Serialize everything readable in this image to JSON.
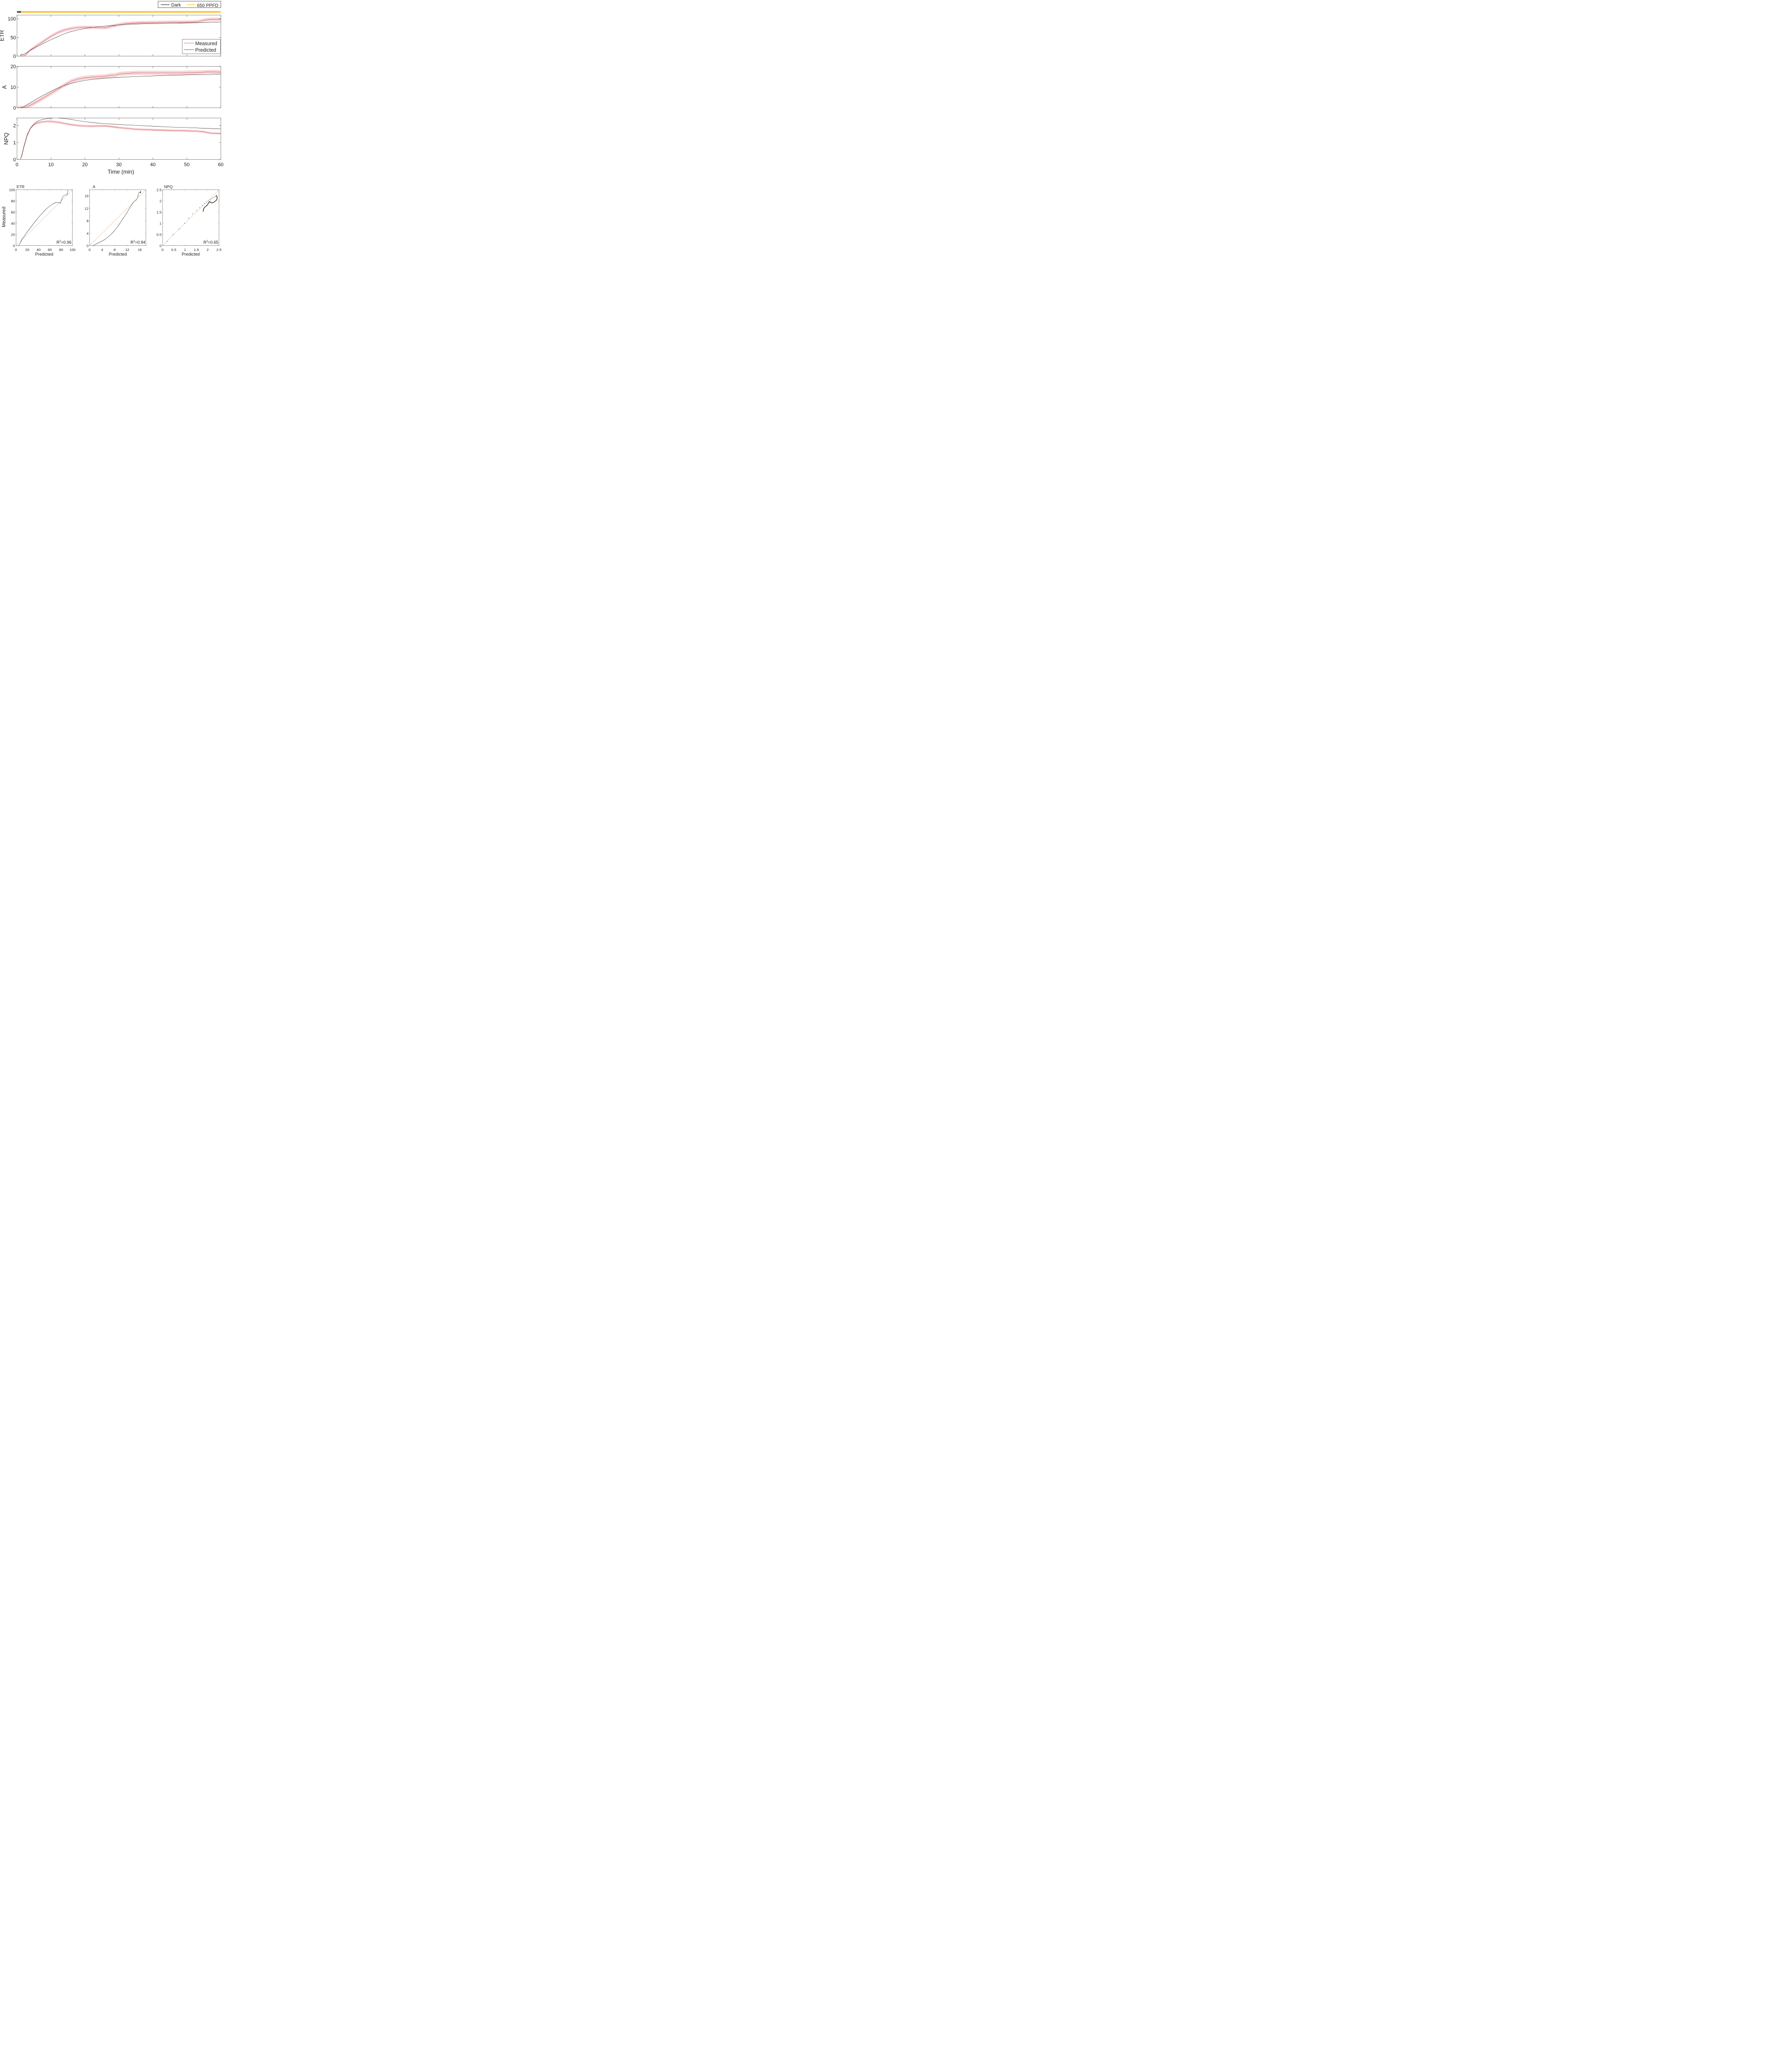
{
  "chart_data": [
    {
      "type": "line",
      "panel": "time-series",
      "light_protocol": {
        "legend": [
          {
            "label": "Dark",
            "color": "#555555"
          },
          {
            "label": "650 PPFD",
            "color": "#f7c948"
          }
        ],
        "segments": [
          {
            "condition": "Dark",
            "start": 0,
            "end": 1.2
          },
          {
            "condition": "650 PPFD",
            "start": 1.2,
            "end": 60
          }
        ]
      },
      "xlabel": "Time (min)",
      "xlim": [
        0,
        60
      ],
      "xticks": [
        "0",
        "10",
        "20",
        "30",
        "40",
        "50",
        "60"
      ],
      "legend": [
        {
          "label": "Measured",
          "color": "#c0392b"
        },
        {
          "label": "Predicted",
          "color": "#111111"
        }
      ],
      "subplots": [
        {
          "ylabel": "ETR",
          "ylim": [
            0,
            110
          ],
          "yticks": [
            "0",
            "50",
            "100"
          ],
          "series": [
            {
              "name": "Measured",
              "x": [
                1,
                2.2,
                3,
                4,
                6,
                8,
                10,
                12,
                14,
                16,
                18,
                20,
                22,
                24,
                26,
                28,
                30,
                32,
                36,
                40,
                44,
                48,
                52,
                53,
                55,
                57,
                60
              ],
              "y": [
                0,
                0,
                8,
                17,
                29,
                41,
                53,
                63,
                70,
                74,
                76.5,
                77,
                77,
                76.5,
                76,
                80,
                84,
                87,
                89.5,
                90,
                90.5,
                91,
                91.5,
                92,
                96,
                98.5,
                98.5
              ],
              "band": 4.5
            },
            {
              "name": "Predicted",
              "x": [
                1,
                1.3,
                1.6,
                2,
                3,
                4,
                6,
                8,
                10,
                12,
                14,
                16,
                18,
                20,
                22,
                24,
                26,
                28,
                30,
                32,
                36,
                40,
                44,
                48,
                52,
                56,
                60
              ],
              "y": [
                0,
                6,
                4,
                5,
                10,
                16,
                26,
                35,
                44,
                52,
                60,
                66,
                70,
                74,
                76.5,
                78.5,
                80.5,
                82,
                83.5,
                85,
                86.5,
                87.5,
                88,
                88.7,
                89.5,
                90.3,
                91.5
              ]
            }
          ]
        },
        {
          "ylabel": "A",
          "ylim": [
            0,
            20
          ],
          "yticks": [
            "0",
            "10",
            "20"
          ],
          "series": [
            {
              "name": "Measured",
              "x": [
                0.3,
                1,
                2,
                3,
                4,
                6,
                8,
                10,
                12,
                14,
                16,
                18,
                20,
                22,
                24,
                26,
                27,
                28,
                29,
                30,
                32,
                34,
                36,
                40,
                44,
                48,
                50,
                52,
                54,
                56,
                58,
                60
              ],
              "y": [
                0,
                0,
                0.1,
                0.6,
                1.3,
                3.1,
                5.0,
                7.0,
                9.0,
                11.0,
                12.9,
                13.9,
                14.5,
                14.8,
                15.0,
                15.2,
                15.5,
                15.7,
                15.8,
                16.3,
                16.6,
                16.8,
                16.9,
                16.9,
                16.9,
                16.9,
                17.0,
                17.0,
                17.1,
                17.3,
                17.3,
                17.2
              ],
              "band": 1.0
            },
            {
              "name": "Predicted",
              "x": [
                0.3,
                1,
                2,
                4,
                6,
                8,
                10,
                12,
                14,
                16,
                18,
                20,
                22,
                24,
                26,
                28,
                30,
                35,
                40,
                45,
                50,
                55,
                60
              ],
              "y": [
                0,
                0,
                0.6,
                2.5,
                4.5,
                6.3,
                8.0,
                9.5,
                10.8,
                11.8,
                12.6,
                13.2,
                13.7,
                14.0,
                14.3,
                14.5,
                14.7,
                15.1,
                15.4,
                15.7,
                15.9,
                16.0,
                16.2
              ]
            }
          ]
        },
        {
          "ylabel": "NPQ",
          "ylim": [
            0,
            2.45
          ],
          "yticks": [
            "0",
            "1",
            "2"
          ],
          "series": [
            {
              "name": "Measured",
              "x": [
                1,
                1.5,
                2,
                3,
                4,
                5,
                6,
                7,
                8,
                9,
                10,
                12,
                14,
                16,
                18,
                20,
                22,
                24,
                26,
                28,
                30,
                35,
                40,
                45,
                50,
                53,
                55,
                57,
                60
              ],
              "y": [
                0,
                0.3,
                0.75,
                1.45,
                1.85,
                2.05,
                2.15,
                2.2,
                2.23,
                2.24,
                2.24,
                2.2,
                2.12,
                2.05,
                2.0,
                1.97,
                1.96,
                1.97,
                1.98,
                1.93,
                1.88,
                1.78,
                1.74,
                1.71,
                1.69,
                1.67,
                1.63,
                1.55,
                1.53
              ],
              "band": 0.07
            },
            {
              "name": "Predicted",
              "x": [
                1,
                1.5,
                2,
                3,
                4,
                5,
                6,
                7,
                8,
                9,
                10,
                11,
                12,
                14,
                16,
                18,
                20,
                22,
                24,
                26,
                28,
                30,
                35,
                40,
                45,
                50,
                55,
                60
              ],
              "y": [
                0,
                0.25,
                0.7,
                1.4,
                1.85,
                2.1,
                2.25,
                2.33,
                2.38,
                2.41,
                2.44,
                2.45,
                2.45,
                2.42,
                2.36,
                2.29,
                2.23,
                2.18,
                2.14,
                2.11,
                2.09,
                2.06,
                2.01,
                1.96,
                1.91,
                1.88,
                1.84,
                1.8
              ]
            }
          ]
        }
      ]
    },
    {
      "type": "scatter",
      "title": "ETR",
      "xlabel": "Predicted",
      "ylabel": "Measured",
      "xlim": [
        0,
        100
      ],
      "ylim": [
        0,
        100
      ],
      "ticks": [
        "0",
        "20",
        "40",
        "60",
        "80",
        "100"
      ],
      "annotation": {
        "base": "R",
        "sup": "2",
        "rest": "=0.96"
      },
      "identity_line": true,
      "curve": {
        "x": [
          5,
          6,
          8,
          9,
          11,
          14,
          18,
          24,
          30,
          36,
          42,
          48,
          54,
          60,
          66,
          70,
          73,
          75,
          78,
          79,
          80,
          82,
          83,
          84,
          86,
          88,
          90,
          91,
          91,
          91.5,
          92
        ],
        "y": [
          0,
          1.5,
          5,
          8,
          12,
          16,
          22,
          30,
          38,
          46,
          53,
          60,
          66,
          71,
          75,
          77,
          77.5,
          77,
          76.5,
          76,
          80,
          85,
          87,
          89,
          90,
          90.5,
          91,
          91.5,
          95,
          97,
          98.5
        ]
      }
    },
    {
      "type": "scatter",
      "title": "A",
      "xlabel": "Predicted",
      "ylabel": "",
      "xlim": [
        0,
        18
      ],
      "ylim": [
        0,
        18
      ],
      "ticks": [
        "0",
        "4",
        "8",
        "12",
        "16"
      ],
      "annotation": {
        "base": "R",
        "sup": "2",
        "rest": "=0.94"
      },
      "identity_line": true,
      "curve": {
        "x": [
          1.2,
          2,
          3,
          4,
          5,
          6,
          7,
          8,
          9,
          10,
          11,
          12,
          13,
          14,
          14.5,
          15,
          15.3,
          15.5,
          15.7,
          16,
          16.1,
          16.2,
          16.3,
          16.2,
          16.3
        ],
        "y": [
          0,
          0.5,
          1.0,
          1.5,
          2.1,
          2.9,
          3.8,
          4.9,
          6.2,
          7.7,
          9.2,
          10.8,
          12.5,
          14.0,
          14.5,
          14.8,
          15.5,
          16.3,
          17.0,
          17.1,
          17.2,
          17.0,
          17.4,
          17.3,
          17.2
        ]
      }
    },
    {
      "type": "scatter",
      "title": "NPQ",
      "xlabel": "Predicted",
      "ylabel": "",
      "xlim": [
        0,
        2.5
      ],
      "ylim": [
        0,
        2.5
      ],
      "ticks": [
        "0",
        "0.5",
        "1",
        "1.5",
        "2",
        "2.5"
      ],
      "annotation": {
        "base": "R",
        "sup": "2",
        "rest": "=0.65"
      },
      "identity_line": true,
      "points": {
        "x": [
          0.2,
          0.47,
          0.74,
          0.98,
          1.15,
          1.33,
          1.51,
          1.65,
          1.76,
          1.86,
          1.95,
          2.03,
          2.1,
          2.16,
          2.22,
          2.28,
          2.33,
          2.37
        ],
        "y": [
          0.2,
          0.5,
          0.75,
          1.0,
          1.23,
          1.42,
          1.58,
          1.7,
          1.8,
          1.88,
          1.95,
          2.0,
          2.05,
          2.09,
          2.13,
          2.16,
          2.19,
          2.21
        ]
      },
      "curve": {
        "x": [
          2.39,
          2.41,
          2.42,
          2.4,
          2.35,
          2.27,
          2.18,
          2.12,
          2.1,
          2.1,
          2.08,
          2.05,
          2.02,
          2.0,
          1.97,
          1.93,
          1.88,
          1.83,
          1.81,
          1.8
        ],
        "y": [
          2.24,
          2.2,
          2.12,
          2.05,
          2.0,
          1.94,
          1.91,
          1.93,
          1.96,
          1.98,
          1.96,
          1.93,
          1.88,
          1.84,
          1.8,
          1.77,
          1.73,
          1.67,
          1.6,
          1.53
        ]
      }
    }
  ]
}
